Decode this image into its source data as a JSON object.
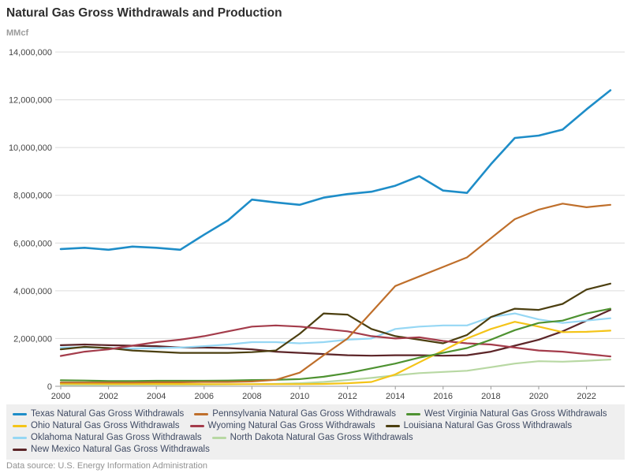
{
  "title": "Natural Gas Gross Withdrawals and Production",
  "unit_label": "MMcf",
  "footer": {
    "source_text": "Data source: U.S. Energy Information Administration"
  },
  "colors": {
    "grid": "#dcdcdc",
    "axis": "#9a9a9a",
    "legend_background": "#efefef",
    "legend_text": "#3f4a63"
  },
  "chart_data": {
    "type": "line",
    "title": "Natural Gas Gross Withdrawals and Production",
    "ylabel": "MMcf",
    "xlabel": "",
    "grid": true,
    "legend_position": "bottom",
    "ylim": [
      0,
      14000000
    ],
    "y_tick_interval": 2000000,
    "x": [
      2000,
      2001,
      2002,
      2003,
      2004,
      2005,
      2006,
      2007,
      2008,
      2009,
      2010,
      2011,
      2012,
      2013,
      2014,
      2015,
      2016,
      2017,
      2018,
      2019,
      2020,
      2021,
      2022,
      2023
    ],
    "x_tick_years": [
      2000,
      2002,
      2004,
      2006,
      2008,
      2010,
      2012,
      2014,
      2016,
      2018,
      2020,
      2022
    ],
    "series": [
      {
        "name": "Texas Natural Gas Gross Withdrawals",
        "slug": "texas",
        "color": "#1e8dc8",
        "width": 2.6,
        "values": [
          5750000,
          5800000,
          5720000,
          5850000,
          5800000,
          5720000,
          6350000,
          6950000,
          7820000,
          7700000,
          7600000,
          7900000,
          8050000,
          8150000,
          8400000,
          8800000,
          8200000,
          8100000,
          9300000,
          10400000,
          10500000,
          10750000,
          11600000,
          12400000
        ]
      },
      {
        "name": "Pennsylvania Natural Gas Gross Withdrawals",
        "slug": "pennsylvania",
        "color": "#bf6f2b",
        "width": 2.2,
        "values": [
          160000,
          160000,
          160000,
          160000,
          170000,
          170000,
          180000,
          180000,
          200000,
          270000,
          570000,
          1300000,
          2000000,
          3100000,
          4200000,
          4600000,
          5000000,
          5400000,
          6200000,
          7000000,
          7400000,
          7650000,
          7500000,
          7600000
        ]
      },
      {
        "name": "West Virginia Natural Gas Gross Withdrawals",
        "slug": "west-virginia",
        "color": "#4e9231",
        "width": 2.2,
        "values": [
          250000,
          240000,
          220000,
          220000,
          230000,
          230000,
          230000,
          240000,
          260000,
          270000,
          300000,
          400000,
          550000,
          750000,
          950000,
          1200000,
          1400000,
          1600000,
          1950000,
          2350000,
          2650000,
          2750000,
          3050000,
          3250000
        ]
      },
      {
        "name": "Ohio Natural Gas Gross Withdrawals",
        "slug": "ohio",
        "color": "#f4c418",
        "width": 2.2,
        "values": [
          110000,
          105000,
          100000,
          100000,
          100000,
          95000,
          90000,
          90000,
          90000,
          90000,
          90000,
          100000,
          130000,
          180000,
          500000,
          1000000,
          1500000,
          2000000,
          2400000,
          2700000,
          2500000,
          2270000,
          2280000,
          2330000
        ]
      },
      {
        "name": "Wyoming Natural Gas Gross Withdrawals",
        "slug": "wyoming",
        "color": "#a43c4b",
        "width": 2.2,
        "values": [
          1270000,
          1450000,
          1550000,
          1700000,
          1850000,
          1950000,
          2100000,
          2300000,
          2500000,
          2550000,
          2500000,
          2400000,
          2300000,
          2100000,
          2000000,
          2050000,
          1900000,
          1800000,
          1750000,
          1620000,
          1500000,
          1450000,
          1350000,
          1250000
        ]
      },
      {
        "name": "Louisiana Natural Gas Gross Withdrawals",
        "slug": "louisiana",
        "color": "#4c3f10",
        "width": 2.2,
        "values": [
          1550000,
          1650000,
          1600000,
          1500000,
          1450000,
          1400000,
          1400000,
          1400000,
          1430000,
          1500000,
          2200000,
          3050000,
          3000000,
          2400000,
          2100000,
          1950000,
          1800000,
          2150000,
          2900000,
          3250000,
          3200000,
          3450000,
          4050000,
          4300000
        ]
      },
      {
        "name": "Oklahoma Natural Gas Gross Withdrawals",
        "slug": "oklahoma",
        "color": "#96d7f4",
        "width": 2.2,
        "values": [
          1620000,
          1630000,
          1600000,
          1580000,
          1600000,
          1620000,
          1680000,
          1750000,
          1850000,
          1850000,
          1800000,
          1850000,
          1950000,
          2000000,
          2400000,
          2500000,
          2550000,
          2550000,
          2900000,
          3050000,
          2800000,
          2650000,
          2750000,
          2850000
        ]
      },
      {
        "name": "North Dakota Natural Gas Gross Withdrawals",
        "slug": "north-dakota",
        "color": "#b8d8a3",
        "width": 2.2,
        "values": [
          55000,
          55000,
          55000,
          60000,
          60000,
          65000,
          70000,
          75000,
          90000,
          100000,
          130000,
          180000,
          260000,
          350000,
          460000,
          550000,
          600000,
          650000,
          800000,
          950000,
          1050000,
          1030000,
          1070000,
          1120000
        ]
      },
      {
        "name": "New Mexico Natural Gas Gross Withdrawals",
        "slug": "new-mexico",
        "color": "#5c2528",
        "width": 2.2,
        "values": [
          1720000,
          1750000,
          1720000,
          1700000,
          1680000,
          1620000,
          1620000,
          1600000,
          1550000,
          1450000,
          1400000,
          1350000,
          1300000,
          1280000,
          1300000,
          1300000,
          1280000,
          1300000,
          1450000,
          1700000,
          1950000,
          2300000,
          2750000,
          3200000
        ]
      }
    ]
  }
}
